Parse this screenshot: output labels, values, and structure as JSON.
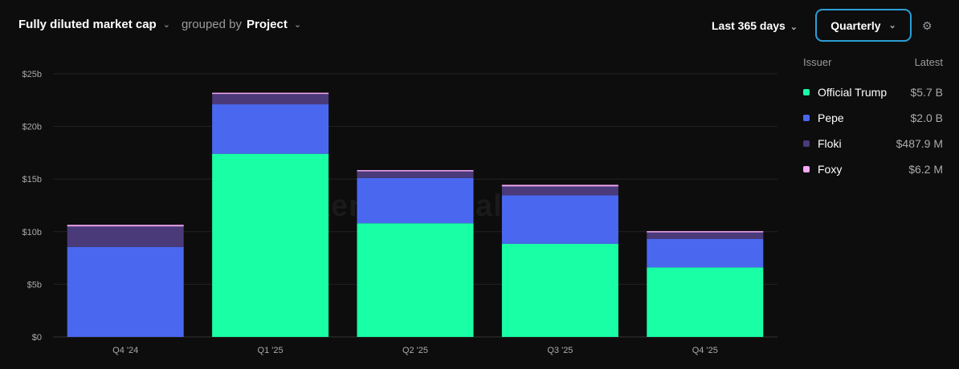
{
  "header": {
    "metric": "Fully diluted market cap",
    "grouped_by": "grouped by",
    "group": "Project",
    "range": "Last 365 days",
    "interval": "Quarterly"
  },
  "watermark": "token terminal_",
  "legend": {
    "col1": "Issuer",
    "col2": "Latest",
    "items": [
      {
        "name": "Official Trump",
        "latest": "$5.7 B",
        "color": "#19ffa6"
      },
      {
        "name": "Pepe",
        "latest": "$2.0 B",
        "color": "#4a68ef"
      },
      {
        "name": "Floki",
        "latest": "$487.9 M",
        "color": "#4a3a7a"
      },
      {
        "name": "Foxy",
        "latest": "$6.2 M",
        "color": "#f5a8f5"
      }
    ]
  },
  "chart_data": {
    "type": "bar",
    "stacked": true,
    "title": "Fully diluted market cap",
    "xlabel": "",
    "ylabel": "",
    "ylim": [
      0,
      25
    ],
    "yticks": [
      "$0",
      "$5b",
      "$10b",
      "$15b",
      "$20b",
      "$25b"
    ],
    "categories": [
      "Q4 '24",
      "Q1 '25",
      "Q2 '25",
      "Q3 '25",
      "Q4 '25"
    ],
    "series": [
      {
        "name": "Official Trump",
        "color": "#19ffa6",
        "values": [
          0,
          17.4,
          10.8,
          8.85,
          6.6
        ]
      },
      {
        "name": "Pepe",
        "color": "#4a68ef",
        "values": [
          8.55,
          4.7,
          4.3,
          4.6,
          2.7
        ]
      },
      {
        "name": "Floki",
        "color": "#4a3a7a",
        "values": [
          1.95,
          1.05,
          0.7,
          0.85,
          0.7
        ]
      },
      {
        "name": "Foxy",
        "color": "#f5a8f5",
        "values": [
          0.15,
          0.05,
          0.05,
          0.15,
          0.05
        ]
      }
    ],
    "grid": true,
    "legend": "right"
  }
}
